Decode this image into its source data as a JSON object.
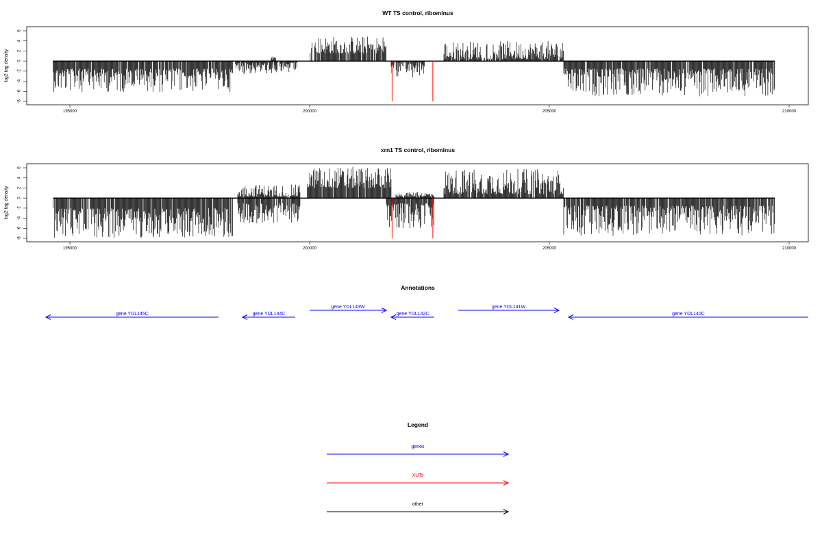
{
  "chart_data": [
    {
      "type": "bar",
      "title": "WT TS control, ribominus",
      "ylabel": "log2 tag density",
      "xlim": [
        194100,
        210400
      ],
      "ylim": [
        -8,
        6
      ],
      "x_ticks": [
        195000,
        200000,
        205000,
        210000
      ],
      "y_ticks": [
        -8,
        -6,
        -4,
        -2,
        0,
        2,
        4,
        6
      ],
      "grid": false,
      "density_segments": [
        {
          "start": 194650,
          "end": 198400,
          "sign": -1,
          "min": 1.5,
          "max": 6.2
        },
        {
          "start": 198450,
          "end": 199750,
          "sign": -1,
          "min": 0.3,
          "max": 2.6
        },
        {
          "start": 199200,
          "end": 199300,
          "sign": 1,
          "min": 0.3,
          "max": 1.1
        },
        {
          "start": 200000,
          "end": 201600,
          "sign": 1,
          "min": 1.5,
          "max": 5.0
        },
        {
          "start": 201700,
          "end": 202400,
          "sign": -1,
          "min": 0.2,
          "max": 3.5
        },
        {
          "start": 202800,
          "end": 205300,
          "sign": 1,
          "min": 0.4,
          "max": 4.0
        },
        {
          "start": 205300,
          "end": 209700,
          "sign": -1,
          "min": 1.5,
          "max": 7.0
        }
      ],
      "xut_marks": [
        {
          "x": 201720,
          "value": -8
        },
        {
          "x": 202570,
          "value": -8
        }
      ]
    },
    {
      "type": "bar",
      "title": "xrn1 TS control, ribominus",
      "ylabel": "log2 tag density",
      "xlim": [
        194100,
        210400
      ],
      "ylim": [
        -8,
        6
      ],
      "x_ticks": [
        195000,
        200000,
        205000,
        210000
      ],
      "y_ticks": [
        -8,
        -6,
        -4,
        -2,
        0,
        2,
        4,
        6
      ],
      "grid": false,
      "density_segments": [
        {
          "start": 194650,
          "end": 198400,
          "sign": -1,
          "min": 2.0,
          "max": 8.0
        },
        {
          "start": 198500,
          "end": 199800,
          "sign": -1,
          "min": 1.0,
          "max": 5.0
        },
        {
          "start": 198500,
          "end": 199800,
          "sign": 1,
          "min": 0.3,
          "max": 2.7
        },
        {
          "start": 199950,
          "end": 201700,
          "sign": 1,
          "min": 2.0,
          "max": 6.2
        },
        {
          "start": 201600,
          "end": 202600,
          "sign": -1,
          "min": 1.0,
          "max": 6.0
        },
        {
          "start": 201800,
          "end": 202600,
          "sign": 1,
          "min": 0.3,
          "max": 1.2
        },
        {
          "start": 202800,
          "end": 205300,
          "sign": 1,
          "min": 0.8,
          "max": 5.8
        },
        {
          "start": 205300,
          "end": 209700,
          "sign": -1,
          "min": 1.5,
          "max": 7.5
        }
      ],
      "xut_marks": [
        {
          "x": 201720,
          "value": -8
        },
        {
          "x": 202570,
          "value": -8
        }
      ]
    }
  ],
  "panels": [
    {
      "title": "WT TS control, ribominus",
      "ylabel": "log2 tag density"
    },
    {
      "title": "xrn1 TS control, ribominus",
      "ylabel": "log2 tag density"
    }
  ],
  "annotations": {
    "title": "Annotations",
    "genes": [
      {
        "label": "gene YDL145C",
        "start": 194500,
        "end": 198100,
        "strand": "-",
        "track": 1
      },
      {
        "label": "gene YDL144C",
        "start": 198600,
        "end": 199700,
        "strand": "-",
        "track": 1
      },
      {
        "label": "gene YDL143W",
        "start": 200000,
        "end": 201600,
        "strand": "+",
        "track": 0
      },
      {
        "label": "gene YDL142C",
        "start": 201700,
        "end": 202600,
        "strand": "-",
        "track": 1
      },
      {
        "label": "gene YDL141W",
        "start": 203100,
        "end": 205200,
        "strand": "+",
        "track": 0
      },
      {
        "label": "gene YDL140C",
        "start": 205400,
        "end": 210400,
        "strand": "-",
        "track": 1
      }
    ]
  },
  "legend": {
    "title": "Legend",
    "items": [
      {
        "label": "genes",
        "color": "#0000ff"
      },
      {
        "label": "XUTs",
        "color": "#ff0000"
      },
      {
        "label": "other",
        "color": "#000000"
      }
    ]
  },
  "colors": {
    "gene": "#0000ff",
    "xut": "#ff0000",
    "density": "#000000"
  }
}
